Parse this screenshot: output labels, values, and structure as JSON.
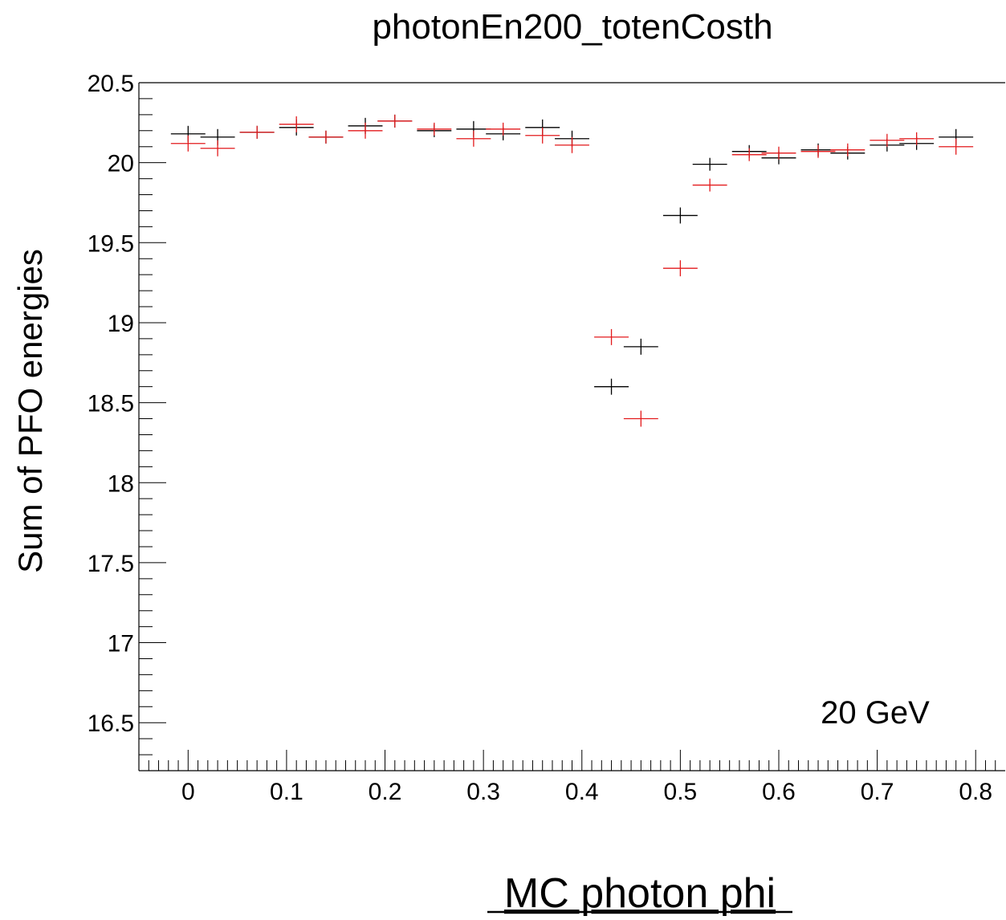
{
  "chart_data": {
    "type": "scatter",
    "title": "photonEn200_totenCosth",
    "xlabel": "MC photon phi",
    "ylabel": "Sum of PFO energies",
    "annotation": "20 GeV",
    "xlim": [
      -0.05,
      0.83
    ],
    "ylim": [
      16.2,
      20.5
    ],
    "x_ticks": [
      0,
      0.1,
      0.2,
      0.3,
      0.4,
      0.5,
      0.6,
      0.7,
      0.8
    ],
    "x_tick_labels": [
      "0",
      "0.1",
      "0.2",
      "0.3",
      "0.4",
      "0.5",
      "0.6",
      "0.7",
      "0.8"
    ],
    "y_ticks": [
      16.5,
      17,
      17.5,
      18,
      18.5,
      19,
      19.5,
      20,
      20.5
    ],
    "y_tick_labels": [
      "16.5",
      "17",
      "17.5",
      "18",
      "18.5",
      "19",
      "19.5",
      "20",
      "20.5"
    ],
    "bin_half_width": 0.0175,
    "grid": false,
    "legend": "none",
    "series": [
      {
        "color": "#000000",
        "x": [
          0.0,
          0.03,
          0.07,
          0.11,
          0.14,
          0.18,
          0.21,
          0.25,
          0.29,
          0.32,
          0.36,
          0.39,
          0.43,
          0.46,
          0.5,
          0.53,
          0.57,
          0.6,
          0.64,
          0.67,
          0.71,
          0.74,
          0.78
        ],
        "y": [
          20.18,
          20.16,
          20.19,
          20.22,
          20.16,
          20.23,
          20.26,
          20.2,
          20.21,
          20.18,
          20.22,
          20.15,
          18.6,
          18.85,
          19.67,
          19.99,
          20.07,
          20.03,
          20.08,
          20.06,
          20.11,
          20.12,
          20.16
        ],
        "yerr": [
          0.03,
          0.03,
          0.02,
          0.03,
          0.02,
          0.03,
          0.02,
          0.02,
          0.03,
          0.02,
          0.03,
          0.03,
          0.03,
          0.03,
          0.03,
          0.02,
          0.02,
          0.02,
          0.02,
          0.02,
          0.02,
          0.02,
          0.03
        ]
      },
      {
        "color": "#e31a1c",
        "x": [
          0.0,
          0.03,
          0.07,
          0.11,
          0.14,
          0.18,
          0.21,
          0.25,
          0.29,
          0.32,
          0.36,
          0.39,
          0.43,
          0.46,
          0.5,
          0.53,
          0.57,
          0.6,
          0.64,
          0.67,
          0.71,
          0.74,
          0.78
        ],
        "y": [
          20.12,
          20.09,
          20.19,
          20.24,
          20.16,
          20.2,
          20.26,
          20.21,
          20.15,
          20.21,
          20.17,
          20.11,
          18.91,
          18.4,
          19.34,
          19.86,
          20.05,
          20.06,
          20.07,
          20.08,
          20.14,
          20.15,
          20.1
        ],
        "yerr": [
          0.03,
          0.03,
          0.02,
          0.03,
          0.02,
          0.03,
          0.02,
          0.02,
          0.03,
          0.02,
          0.03,
          0.03,
          0.03,
          0.03,
          0.03,
          0.02,
          0.02,
          0.02,
          0.02,
          0.02,
          0.02,
          0.02,
          0.03
        ]
      }
    ]
  }
}
